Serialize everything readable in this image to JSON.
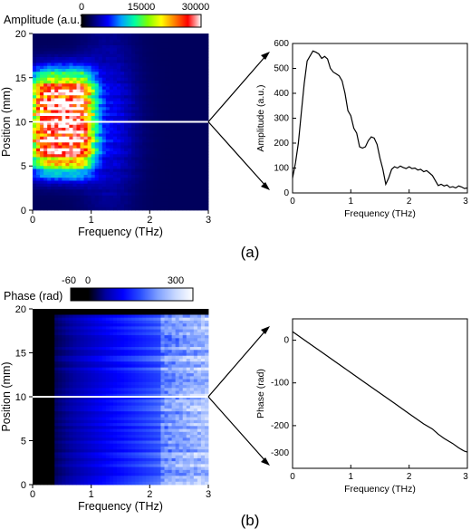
{
  "chart_data": [
    {
      "type": "heatmap",
      "panel_label": "(a)",
      "colorbar": {
        "label": "Amplitude (a.u.)",
        "ticks": [
          "0",
          "15000",
          "30000"
        ],
        "range": [
          0,
          30000
        ],
        "colors": [
          "#000000",
          "#000080",
          "#0000ff",
          "#00a0ff",
          "#00ffa0",
          "#7fff00",
          "#ffff00",
          "#ff8000",
          "#ff0000",
          "#ffffff"
        ]
      },
      "xlabel": "Frequency (THz)",
      "ylabel": "Position (mm)",
      "xlim": [
        0,
        3
      ],
      "ylim": [
        0,
        20
      ],
      "xticks": [
        "0",
        "1",
        "2",
        "3"
      ],
      "yticks": [
        "0",
        "5",
        "10",
        "15",
        "20"
      ],
      "cut_position_mm": 10,
      "hot_region": {
        "freq_center": 0.5,
        "freq_halfwidth": 0.55,
        "pos_center": 10,
        "pos_halfwidth": 5.5,
        "peak": 30000
      }
    },
    {
      "type": "line",
      "xlabel": "Frequency (THz)",
      "ylabel": "Amplitude (a.u.)",
      "xlim": [
        0,
        3
      ],
      "ylim": [
        0,
        600
      ],
      "xticks": [
        "0",
        "1",
        "2",
        "3"
      ],
      "yticks": [
        "0",
        "100",
        "200",
        "300",
        "400",
        "500",
        "600"
      ],
      "x": [
        0,
        0.05,
        0.1,
        0.15,
        0.2,
        0.25,
        0.3,
        0.35,
        0.4,
        0.45,
        0.5,
        0.55,
        0.6,
        0.65,
        0.7,
        0.75,
        0.8,
        0.85,
        0.9,
        0.95,
        1.0,
        1.05,
        1.1,
        1.15,
        1.2,
        1.25,
        1.3,
        1.35,
        1.4,
        1.45,
        1.5,
        1.55,
        1.6,
        1.65,
        1.7,
        1.75,
        1.8,
        1.85,
        1.9,
        1.95,
        2.0,
        2.05,
        2.1,
        2.15,
        2.2,
        2.25,
        2.3,
        2.35,
        2.4,
        2.45,
        2.5,
        2.55,
        2.6,
        2.65,
        2.7,
        2.75,
        2.8,
        2.85,
        2.9,
        2.95,
        3.0
      ],
      "y": [
        60,
        120,
        200,
        320,
        440,
        530,
        550,
        570,
        565,
        558,
        540,
        548,
        538,
        500,
        485,
        478,
        470,
        450,
        400,
        330,
        310,
        260,
        240,
        185,
        180,
        185,
        210,
        225,
        220,
        195,
        140,
        95,
        35,
        60,
        95,
        105,
        100,
        108,
        102,
        98,
        105,
        98,
        100,
        92,
        95,
        85,
        90,
        80,
        70,
        50,
        30,
        35,
        28,
        32,
        22,
        25,
        20,
        28,
        24,
        18,
        20
      ]
    },
    {
      "type": "heatmap",
      "panel_label": "(b)",
      "colorbar": {
        "label": "Phase (rad)",
        "ticks": [
          "-60",
          "0",
          "300"
        ],
        "range": [
          -60,
          300
        ],
        "colors": [
          "#000000",
          "#000000",
          "#0000a0",
          "#0000ff",
          "#2a4fff",
          "#7fa0ff",
          "#c8d8ff",
          "#ffffff"
        ]
      },
      "xlabel": "Frequency (THz)",
      "ylabel": "Position (mm)",
      "xlim": [
        0,
        3
      ],
      "ylim": [
        0,
        20
      ],
      "xticks": [
        "0",
        "1",
        "2",
        "3"
      ],
      "yticks": [
        "0",
        "5",
        "10",
        "15",
        "20"
      ],
      "cut_position_mm": 10
    },
    {
      "type": "line",
      "xlabel": "Frequency (THz)",
      "ylabel": "Phase (rad)",
      "xlim": [
        0,
        3
      ],
      "ylim": [
        -320,
        30
      ],
      "xticks": [
        "0",
        "1",
        "2",
        "3"
      ],
      "yticks": [
        "0",
        "-100",
        "-200",
        "-300"
      ],
      "x": [
        0,
        0.25,
        0.5,
        0.75,
        1.0,
        1.25,
        1.5,
        1.75,
        2.0,
        2.25,
        2.4,
        2.5,
        2.6,
        2.75,
        2.85,
        2.9,
        2.95,
        3.0
      ],
      "y": [
        0,
        -24,
        -48,
        -72,
        -96,
        -120,
        -144,
        -168,
        -192,
        -216,
        -228,
        -240,
        -250,
        -262,
        -272,
        -276,
        -280,
        -282
      ]
    }
  ]
}
